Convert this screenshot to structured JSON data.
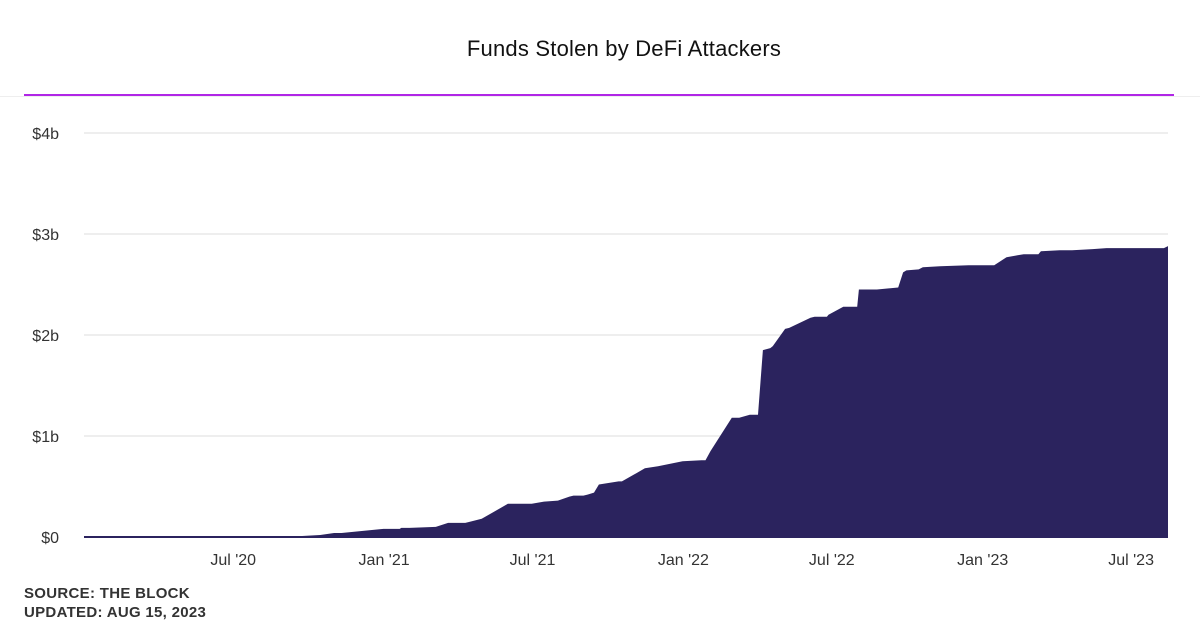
{
  "header": {
    "title": "Funds Stolen by DeFi Attackers",
    "accent_color": "#b026e6"
  },
  "footer": {
    "source": "SOURCE: THE BLOCK",
    "updated": "UPDATED: AUG 15, 2023"
  },
  "chart_data": {
    "type": "area",
    "title": "Funds Stolen by DeFi Attackers",
    "xlabel": "",
    "ylabel": "",
    "fill_color": "#2b235e",
    "grid": true,
    "ylim": [
      0,
      4
    ],
    "y_unit": "billion USD",
    "yticks": [
      {
        "value": 0,
        "label": "$0"
      },
      {
        "value": 1,
        "label": "$1b"
      },
      {
        "value": 2,
        "label": "$2b"
      },
      {
        "value": 3,
        "label": "$3b"
      },
      {
        "value": 4,
        "label": "$4b"
      }
    ],
    "xlim": [
      "2020-01-01",
      "2023-08-15"
    ],
    "xticks": [
      {
        "value": "2020-07-01",
        "label": "Jul '20"
      },
      {
        "value": "2021-01-01",
        "label": "Jan '21"
      },
      {
        "value": "2021-07-01",
        "label": "Jul '21"
      },
      {
        "value": "2022-01-01",
        "label": "Jan '22"
      },
      {
        "value": "2022-07-01",
        "label": "Jul '22"
      },
      {
        "value": "2023-01-01",
        "label": "Jan '23"
      },
      {
        "value": "2023-07-01",
        "label": "Jul '23"
      }
    ],
    "series": [
      {
        "x": [
          "2020-01-01",
          "2020-09-01",
          "2020-10-15",
          "2020-11-01",
          "2020-11-10",
          "2020-12-31",
          "2021-01-20",
          "2021-01-22",
          "2021-02-01",
          "2021-03-05",
          "2021-03-20",
          "2021-03-28",
          "2021-04-03",
          "2021-04-10",
          "2021-04-15",
          "2021-04-30",
          "2021-05-15",
          "2021-06-01",
          "2021-06-15",
          "2021-06-30",
          "2021-07-15",
          "2021-08-01",
          "2021-08-15",
          "2021-08-20",
          "2021-09-01",
          "2021-09-06",
          "2021-09-14",
          "2021-09-20",
          "2021-10-14",
          "2021-10-18",
          "2021-11-15",
          "2021-12-01",
          "2021-12-31",
          "2022-01-23",
          "2022-01-28",
          "2022-02-03",
          "2022-03-01",
          "2022-03-06",
          "2022-03-10",
          "2022-03-23",
          "2022-04-02",
          "2022-04-08",
          "2022-04-17",
          "2022-04-20",
          "2022-05-05",
          "2022-05-10",
          "2022-06-05",
          "2022-06-10",
          "2022-06-25",
          "2022-06-27",
          "2022-07-15",
          "2022-07-18",
          "2022-08-01",
          "2022-08-03",
          "2022-08-25",
          "2022-09-20",
          "2022-09-26",
          "2022-09-30",
          "2022-10-15",
          "2022-10-20",
          "2022-11-10",
          "2022-12-15",
          "2023-01-15",
          "2023-01-30",
          "2023-02-20",
          "2023-03-10",
          "2023-03-13",
          "2023-04-05",
          "2023-04-20",
          "2023-05-15",
          "2023-06-01",
          "2023-08-10",
          "2023-08-15"
        ],
        "values": [
          0.0,
          0.0,
          0.02,
          0.04,
          0.04,
          0.08,
          0.08,
          0.09,
          0.09,
          0.1,
          0.14,
          0.14,
          0.14,
          0.14,
          0.15,
          0.18,
          0.25,
          0.33,
          0.33,
          0.33,
          0.35,
          0.36,
          0.4,
          0.41,
          0.41,
          0.42,
          0.44,
          0.52,
          0.55,
          0.55,
          0.68,
          0.7,
          0.75,
          0.76,
          0.76,
          0.85,
          1.18,
          1.18,
          1.18,
          1.21,
          1.21,
          1.85,
          1.87,
          1.89,
          2.06,
          2.07,
          2.17,
          2.18,
          2.18,
          2.2,
          2.28,
          2.28,
          2.28,
          2.45,
          2.45,
          2.47,
          2.62,
          2.64,
          2.65,
          2.67,
          2.68,
          2.69,
          2.69,
          2.77,
          2.8,
          2.8,
          2.83,
          2.84,
          2.84,
          2.85,
          2.86,
          2.86,
          2.88
        ]
      }
    ]
  }
}
